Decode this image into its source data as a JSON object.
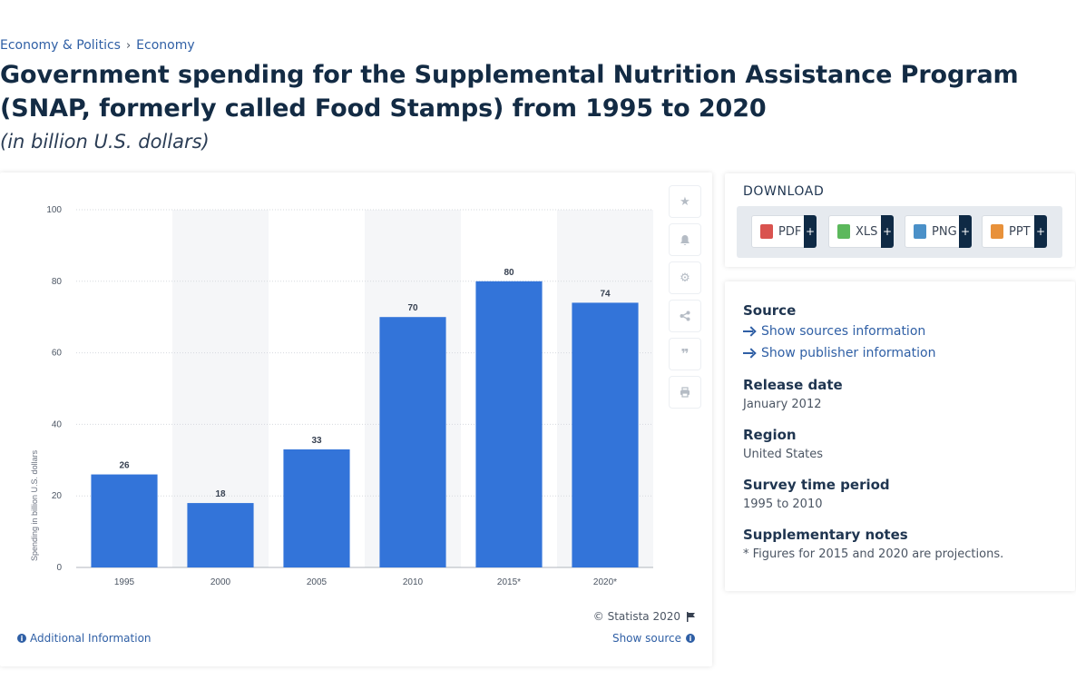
{
  "breadcrumb": {
    "items": [
      "Economy & Politics",
      "Economy"
    ],
    "separator": "›"
  },
  "page": {
    "title": "Government spending for the Supplemental Nutrition Assistance Program (SNAP, formerly called Food Stamps) from 1995 to 2020",
    "subtitle": "(in billion U.S. dollars)"
  },
  "chart_data": {
    "type": "bar",
    "categories": [
      "1995",
      "2000",
      "2005",
      "2010",
      "2015*",
      "2020*"
    ],
    "values": [
      26,
      18,
      33,
      70,
      80,
      74
    ],
    "title": "",
    "xlabel": "",
    "ylabel": "Spending in billion U.S. dollars",
    "ylim": [
      0,
      100
    ],
    "yticks": [
      0,
      20,
      40,
      60,
      80,
      100
    ],
    "grid": true,
    "data_labels": true,
    "bar_color": "#3374d9"
  },
  "chart_footer": {
    "copyright": "© Statista 2020",
    "additional_info": "Additional Information",
    "show_source": "Show source"
  },
  "tools": {
    "icons": [
      "star-icon",
      "bell-icon",
      "gear-icon",
      "share-icon",
      "quote-icon",
      "print-icon"
    ]
  },
  "download": {
    "title": "DOWNLOAD",
    "buttons": [
      {
        "label": "PDF",
        "plus": "+",
        "color": "#d9534f"
      },
      {
        "label": "XLS",
        "plus": "+",
        "color": "#5cb85c"
      },
      {
        "label": "PNG",
        "plus": "+",
        "color": "#4a90c8"
      },
      {
        "label": "PPT",
        "plus": "+",
        "color": "#e8913a"
      }
    ]
  },
  "meta": {
    "source_heading": "Source",
    "show_sources": "Show sources information",
    "show_publisher": "Show publisher information",
    "release_heading": "Release date",
    "release_value": "January 2012",
    "region_heading": "Region",
    "region_value": "United States",
    "survey_heading": "Survey time period",
    "survey_value": "1995 to 2010",
    "notes_heading": "Supplementary notes",
    "notes_value": "* Figures for 2015 and 2020 are projections."
  }
}
